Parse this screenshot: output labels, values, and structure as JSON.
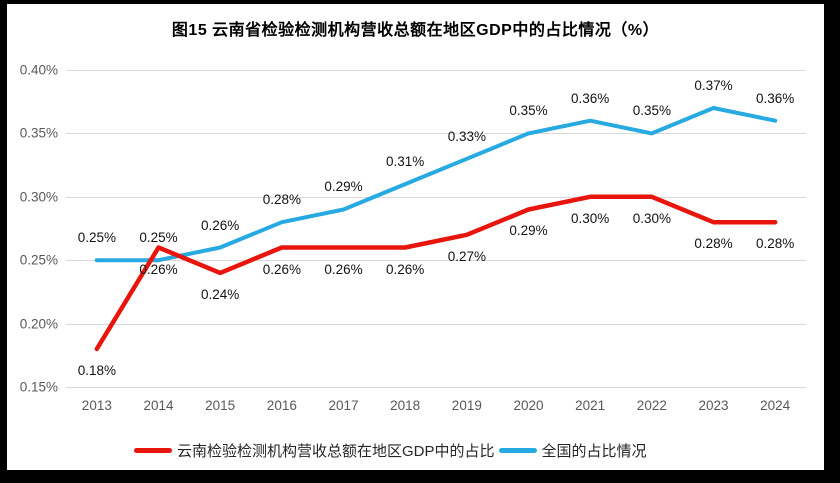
{
  "title": "图15 云南省检验检测机构营收总额在地区GDP中的占比情况（%）",
  "colors": {
    "frame": "#000000",
    "background": "#ffffff",
    "gridline": "#d9d9d9",
    "axis_text": "#595959",
    "data_label_text": "#121212",
    "series_red": "#e8150d",
    "series_blue": "#27a9e1"
  },
  "chart_data": {
    "type": "line",
    "title": "图15 云南省检验检测机构营收总额在地区GDP中的占比情况（%）",
    "categories": [
      "2013",
      "2014",
      "2015",
      "2016",
      "2017",
      "2018",
      "2019",
      "2020",
      "2021",
      "2022",
      "2023",
      "2024"
    ],
    "y_ticks": [
      "0.40%",
      "0.35%",
      "0.30%",
      "0.25%",
      "0.20%",
      "0.15%"
    ],
    "ylim": [
      0.15,
      0.4
    ],
    "grid": true,
    "legend_position": "bottom",
    "series": [
      {
        "name": "云南检验检测机构营收总额在地区GDP中的占比",
        "color": "#e8150d",
        "stroke_width": 4.5,
        "label_position": "below",
        "values": [
          0.18,
          0.26,
          0.24,
          0.26,
          0.26,
          0.26,
          0.27,
          0.29,
          0.3,
          0.3,
          0.28,
          0.28
        ],
        "labels": [
          "0.18%",
          "0.26%",
          "0.24%",
          "0.26%",
          "0.26%",
          "0.26%",
          "0.27%",
          "0.29%",
          "0.30%",
          "0.30%",
          "0.28%",
          "0.28%"
        ]
      },
      {
        "name": "全国的占比情况",
        "color": "#27a9e1",
        "stroke_width": 4,
        "label_position": "above",
        "values": [
          0.25,
          0.25,
          0.26,
          0.28,
          0.29,
          0.31,
          0.33,
          0.35,
          0.36,
          0.35,
          0.37,
          0.36
        ],
        "labels": [
          "0.25%",
          "0.25%",
          "0.26%",
          "0.28%",
          "0.29%",
          "0.31%",
          "0.33%",
          "0.35%",
          "0.36%",
          "0.35%",
          "0.37%",
          "0.36%"
        ]
      }
    ]
  }
}
